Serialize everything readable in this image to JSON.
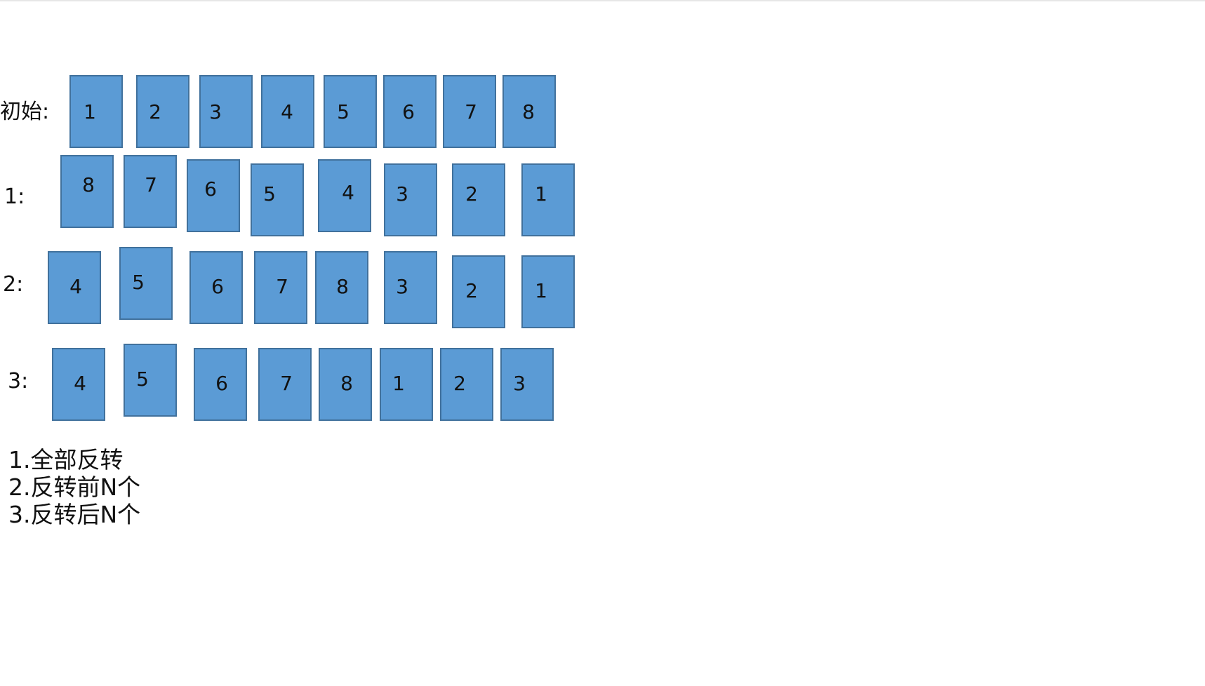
{
  "colors": {
    "box_fill": "#5b9bd5",
    "box_border": "#41719c",
    "text": "#111111"
  },
  "rows": [
    {
      "label": "初始:",
      "boxes": [
        "1",
        "2",
        "3",
        "4",
        "5",
        "6",
        "7",
        "8"
      ]
    },
    {
      "label": "1:",
      "boxes": [
        "8",
        "7",
        "6",
        "5",
        "4",
        "3",
        "2",
        "1"
      ]
    },
    {
      "label": "2:",
      "boxes": [
        "4",
        "5",
        "6",
        "7",
        "8",
        "3",
        "2",
        "1"
      ]
    },
    {
      "label": "3:",
      "boxes": [
        "4",
        "5",
        "6",
        "7",
        "8",
        "1",
        "2",
        "3"
      ]
    }
  ],
  "notes": [
    "1.全部反转",
    "2.反转前N个",
    "3.反转后N个"
  ]
}
